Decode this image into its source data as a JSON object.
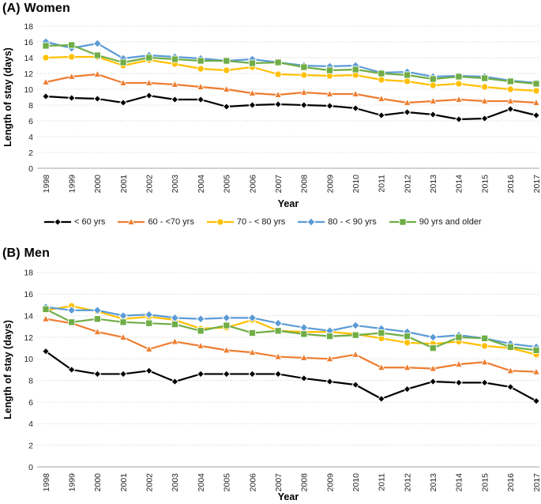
{
  "figure": {
    "panels": [
      {
        "id": "a",
        "title": "(A) Women"
      },
      {
        "id": "b",
        "title": "(B) Men"
      }
    ]
  },
  "axes": {
    "xlabel": "Year",
    "ylabel": "Length of stay (days)",
    "ylim": [
      0,
      18
    ],
    "ytick_step": 2,
    "yticks": [
      0,
      2,
      4,
      6,
      8,
      10,
      12,
      14,
      16,
      18
    ]
  },
  "colors": {
    "under-60": "#000000",
    "60-to-70": "#ED7D31",
    "70-to-80": "#FFC000",
    "80-to-90": "#5B9BD5",
    "90-plus": "#70AD47",
    "gridline": "#C9C9C9",
    "axis-line": "#A6A6A6",
    "tick-text": "#262626"
  },
  "legend": [
    {
      "key": "under-60",
      "label": "< 60 yrs",
      "color": "#000000",
      "marker": "diamond"
    },
    {
      "key": "60-to-70",
      "label": "60 - <70 yrs",
      "color": "#ED7D31",
      "marker": "triangle"
    },
    {
      "key": "70-to-80",
      "label": "70 - < 80 yrs",
      "color": "#FFC000",
      "marker": "circle"
    },
    {
      "key": "80-to-90",
      "label": "80 - < 90 yrs",
      "color": "#5B9BD5",
      "marker": "diamond"
    },
    {
      "key": "90-plus",
      "label": "90 yrs and older",
      "color": "#70AD47",
      "marker": "square"
    }
  ],
  "chart_data": [
    {
      "type": "line",
      "title": "(A) Women",
      "xlabel": "Year",
      "ylabel": "Length of stay (days)",
      "ylim": [
        0,
        18
      ],
      "ytick_step": 2,
      "grid": "horizontal-dotted",
      "legend_position": "below-panel",
      "x": [
        1998,
        1999,
        2000,
        2001,
        2002,
        2003,
        2004,
        2005,
        2006,
        2007,
        2008,
        2009,
        2010,
        2011,
        2012,
        2013,
        2014,
        2015,
        2016,
        2017
      ],
      "series": [
        {
          "name": "< 60 yrs",
          "key": "under-60",
          "color": "#000000",
          "marker": "diamond",
          "values": [
            9.1,
            8.9,
            8.8,
            8.3,
            9.2,
            8.7,
            8.7,
            7.8,
            8.0,
            8.1,
            8.0,
            7.9,
            7.6,
            6.7,
            7.1,
            6.8,
            6.2,
            6.3,
            7.5,
            6.7
          ]
        },
        {
          "name": "60 - <70 yrs",
          "key": "60-to-70",
          "color": "#ED7D31",
          "marker": "triangle",
          "values": [
            10.9,
            11.6,
            11.9,
            10.8,
            10.8,
            10.6,
            10.3,
            10.0,
            9.5,
            9.3,
            9.6,
            9.4,
            9.4,
            8.8,
            8.3,
            8.5,
            8.7,
            8.5,
            8.5,
            8.3
          ]
        },
        {
          "name": "70 - < 80 yrs",
          "key": "70-to-80",
          "color": "#FFC000",
          "marker": "circle",
          "values": [
            14.0,
            14.1,
            14.1,
            13.0,
            13.7,
            13.2,
            12.6,
            12.4,
            12.8,
            11.9,
            11.8,
            11.7,
            11.8,
            11.2,
            11.0,
            10.5,
            10.7,
            10.3,
            10.0,
            9.8
          ]
        },
        {
          "name": "80 - < 90 yrs",
          "key": "80-to-90",
          "color": "#5B9BD5",
          "marker": "diamond",
          "values": [
            16.0,
            15.2,
            15.8,
            13.9,
            14.3,
            14.1,
            13.9,
            13.6,
            13.8,
            13.4,
            13.0,
            12.9,
            13.0,
            12.1,
            12.2,
            11.6,
            11.7,
            11.6,
            11.1,
            10.8
          ]
        },
        {
          "name": "90 yrs and older",
          "key": "90-plus",
          "color": "#70AD47",
          "marker": "square",
          "values": [
            15.5,
            15.6,
            14.3,
            13.4,
            14.0,
            13.8,
            13.6,
            13.6,
            13.3,
            13.4,
            12.8,
            12.4,
            12.5,
            12.0,
            11.8,
            11.3,
            11.6,
            11.4,
            11.0,
            10.7
          ]
        }
      ]
    },
    {
      "type": "line",
      "title": "(B) Men",
      "xlabel": "Year",
      "ylabel": "Length of stay (days)",
      "ylim": [
        0,
        18
      ],
      "ytick_step": 2,
      "grid": "horizontal-dotted",
      "legend_position": "none",
      "x": [
        1998,
        1999,
        2000,
        2001,
        2002,
        2003,
        2004,
        2005,
        2006,
        2007,
        2008,
        2009,
        2010,
        2011,
        2012,
        2013,
        2014,
        2015,
        2016,
        2017
      ],
      "series": [
        {
          "name": "< 60 yrs",
          "key": "under-60",
          "color": "#000000",
          "marker": "diamond",
          "values": [
            10.7,
            9.0,
            8.6,
            8.6,
            8.9,
            7.9,
            8.6,
            8.6,
            8.6,
            8.6,
            8.2,
            7.9,
            7.6,
            6.3,
            7.2,
            7.9,
            7.8,
            7.8,
            7.4,
            6.1
          ]
        },
        {
          "name": "60 - <70 yrs",
          "key": "60-to-70",
          "color": "#ED7D31",
          "marker": "triangle",
          "values": [
            13.7,
            13.3,
            12.5,
            12.0,
            10.9,
            11.6,
            11.2,
            10.8,
            10.6,
            10.2,
            10.1,
            10.0,
            10.4,
            9.2,
            9.2,
            9.1,
            9.5,
            9.7,
            8.9,
            8.8
          ]
        },
        {
          "name": "70 - < 80 yrs",
          "key": "70-to-80",
          "color": "#FFC000",
          "marker": "circle",
          "values": [
            14.5,
            14.9,
            14.4,
            13.7,
            13.9,
            13.6,
            12.8,
            12.9,
            13.6,
            12.6,
            12.5,
            12.5,
            12.3,
            11.9,
            11.5,
            11.4,
            11.6,
            11.2,
            11.0,
            10.4
          ]
        },
        {
          "name": "80 - < 90 yrs",
          "key": "80-to-90",
          "color": "#5B9BD5",
          "marker": "diamond",
          "values": [
            14.8,
            14.5,
            14.5,
            14.0,
            14.1,
            13.8,
            13.7,
            13.8,
            13.8,
            13.3,
            12.9,
            12.6,
            13.1,
            12.8,
            12.5,
            12.0,
            12.2,
            11.9,
            11.4,
            11.1
          ]
        },
        {
          "name": "90 yrs and older",
          "key": "90-plus",
          "color": "#70AD47",
          "marker": "square",
          "values": [
            14.6,
            13.4,
            13.7,
            13.4,
            13.3,
            13.2,
            12.6,
            13.1,
            12.4,
            12.6,
            12.3,
            12.1,
            12.2,
            12.4,
            12.1,
            11.0,
            12.0,
            11.9,
            11.1,
            10.8
          ]
        }
      ]
    }
  ]
}
